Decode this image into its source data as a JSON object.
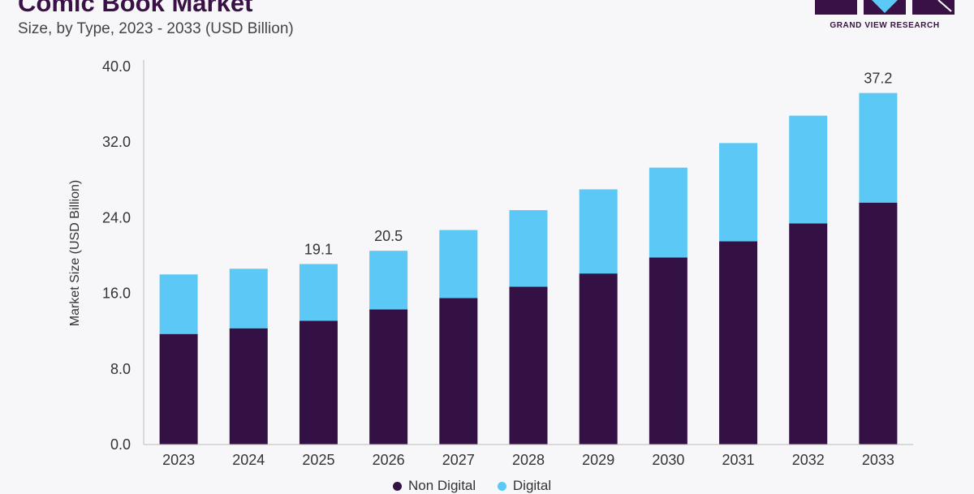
{
  "header": {
    "title": "Comic Book Market",
    "subtitle": "Size, by Type, 2023 - 2033 (USD Billion)"
  },
  "logo": {
    "text": "GRAND VIEW RESEARCH",
    "colors": {
      "dark": "#3a1146",
      "accent": "#5bc8f5"
    }
  },
  "chart_data": {
    "type": "bar",
    "stacked": true,
    "title": "Comic Book Market",
    "subtitle": "Size, by Type, 2023 - 2033 (USD Billion)",
    "xlabel": "",
    "ylabel": "Market Size (USD Billion)",
    "categories": [
      "2023",
      "2024",
      "2025",
      "2026",
      "2027",
      "2028",
      "2029",
      "2030",
      "2031",
      "2032",
      "2033"
    ],
    "series": [
      {
        "name": "Non Digital",
        "color": "#341145",
        "values": [
          11.7,
          12.3,
          13.1,
          14.3,
          15.5,
          16.7,
          18.1,
          19.8,
          21.5,
          23.4,
          25.6
        ]
      },
      {
        "name": "Digital",
        "color": "#5bc8f5",
        "values": [
          6.3,
          6.3,
          6.0,
          6.2,
          7.2,
          8.1,
          8.9,
          9.5,
          10.4,
          11.4,
          11.6
        ]
      }
    ],
    "data_labels": [
      {
        "category": "2025",
        "text": "19.1"
      },
      {
        "category": "2026",
        "text": "20.5"
      },
      {
        "category": "2033",
        "text": "37.2"
      }
    ],
    "yticks": [
      "0.0",
      "8.0",
      "16.0",
      "24.0",
      "32.0",
      "40.0"
    ],
    "ylim": [
      0,
      40
    ],
    "grid": false,
    "legend_position": "bottom-center"
  }
}
